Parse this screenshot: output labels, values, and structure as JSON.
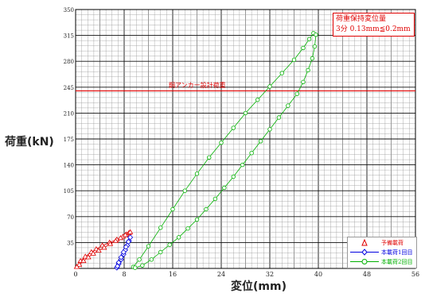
{
  "chart_data": {
    "type": "scatter",
    "xlabel": "変位(mm)",
    "ylabel": "荷重(kN)",
    "xlim": [
      0,
      56
    ],
    "ylim": [
      0,
      350
    ],
    "x_ticks": [
      0,
      8,
      16,
      24,
      32,
      40,
      48,
      56
    ],
    "x_tick_labels": [
      "0",
      "8",
      "16",
      "24",
      "32",
      "40",
      "48",
      "56"
    ],
    "y_ticks": [
      35,
      70,
      105,
      140,
      175,
      210,
      245,
      280,
      315,
      350
    ],
    "y_tick_labels": [
      "35",
      "70",
      "105",
      "140",
      "175",
      "210",
      "245",
      "280",
      "315",
      "350"
    ],
    "grid": true,
    "reference_line": {
      "y": 240,
      "label": "鋼アンカー設計荷重",
      "color": "#e00000"
    },
    "annotation": {
      "lines": [
        "荷重保持変位量",
        "3分 0.13mm≦0.2mm"
      ],
      "color": "#e00000"
    },
    "legend_position": "bottom-right",
    "series": [
      {
        "name": "予備載荷",
        "color": "#e00000",
        "marker": "triangle",
        "x": [
          0.2,
          0.8,
          1.6,
          2.6,
          3.4,
          4.4,
          5.6,
          6.8,
          7.8,
          8.4,
          8.8,
          9.0,
          8.2,
          7.4,
          6.6,
          5.7,
          4.7,
          3.8,
          2.9,
          2.1,
          1.3,
          0.6,
          0.2
        ],
        "y": [
          2,
          10,
          16,
          22,
          26,
          31,
          35,
          39,
          43,
          46,
          48,
          49,
          45,
          41,
          37,
          33,
          28,
          24,
          20,
          15,
          10,
          5,
          2
        ]
      },
      {
        "name": "本載荷1回目",
        "color": "#0000e0",
        "marker": "diamond",
        "x": [
          6.8,
          7.1,
          7.5,
          7.9,
          8.2,
          8.5,
          8.8,
          9.0,
          8.7,
          8.3,
          7.9,
          7.5,
          7.1,
          6.9
        ],
        "y": [
          1,
          6,
          12,
          19,
          25,
          31,
          37,
          42,
          36,
          29,
          22,
          15,
          8,
          3
        ]
      },
      {
        "name": "本載荷2回目",
        "color": "#00b000",
        "marker": "circle",
        "x": [
          9.5,
          10.5,
          12.0,
          14.0,
          16.0,
          18.0,
          20.0,
          22.0,
          24.0,
          26.0,
          28.0,
          30.0,
          32.0,
          34.0,
          36.0,
          37.5,
          38.5,
          39.2,
          39.6,
          39.4,
          39.0,
          38.3,
          37.5,
          36.5,
          35.0,
          33.5,
          32.0,
          30.5,
          29.0,
          27.5,
          26.0,
          24.5,
          23.0,
          21.5,
          20.0,
          18.5,
          17.0,
          15.5,
          14.0,
          12.5,
          11.0,
          9.8
        ],
        "y": [
          2,
          12,
          30,
          55,
          80,
          105,
          128,
          150,
          170,
          190,
          210,
          228,
          246,
          264,
          282,
          298,
          310,
          318,
          316,
          300,
          284,
          268,
          252,
          236,
          220,
          204,
          188,
          172,
          156,
          140,
          124,
          109,
          94,
          80,
          66,
          54,
          42,
          32,
          22,
          12,
          4,
          1
        ]
      }
    ]
  }
}
